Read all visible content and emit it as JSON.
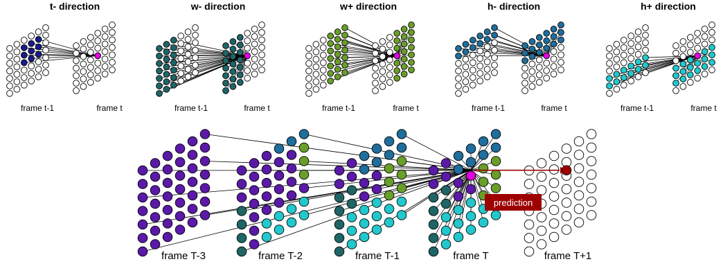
{
  "colors": {
    "t_minus": "#1a1a8c",
    "w_minus": "#1f6566",
    "w_plus": "#6a9e2a",
    "h_minus": "#1f6e9c",
    "h_plus": "#22c8cc",
    "target": "#e000e0",
    "purple": "#5b19a8",
    "prediction_box": "#9e0000",
    "prediction_dot": "#a00000",
    "empty": "#ffffff"
  },
  "top_panels": [
    {
      "title": "t- direction",
      "label_prev": "frame t-1",
      "label_cur": "frame t"
    },
    {
      "title": "w- direction",
      "label_prev": "frame t-1",
      "label_cur": "frame t"
    },
    {
      "title": "w+ direction",
      "label_prev": "frame t-1",
      "label_cur": "frame t"
    },
    {
      "title": "h- direction",
      "label_prev": "frame t-1",
      "label_cur": "frame t"
    },
    {
      "title": "h+ direction",
      "label_prev": "frame t-1",
      "label_cur": "frame t"
    }
  ],
  "bottom": {
    "frame_labels": [
      "frame T-3",
      "frame T-2",
      "frame T-1",
      "frame T",
      "frame T+1"
    ],
    "prediction_label": "prediction"
  }
}
